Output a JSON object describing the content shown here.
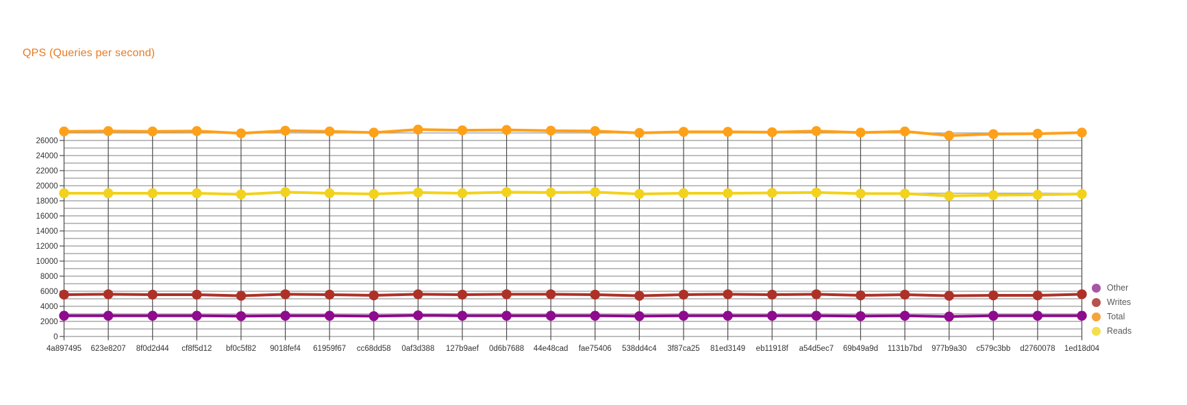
{
  "title": "QPS (Queries per second)",
  "title_color": "#e87a1e",
  "chart_data": {
    "type": "line",
    "title": "QPS (Queries per second)",
    "xlabel": "",
    "ylabel": "",
    "x": [
      "4a897495",
      "623e8207",
      "8f0d2d44",
      "cf8f5d12",
      "bf0c5f82",
      "9018fef4",
      "61959f67",
      "cc68dd58",
      "0af3d388",
      "127b9aef",
      "0d6b7688",
      "44e48cad",
      "fae75406",
      "538dd4c4",
      "3f87ca25",
      "81ed3149",
      "eb11918f",
      "a54d5ec7",
      "69b49a9d",
      "1131b7bd",
      "977b9a30",
      "c579c3bb",
      "d2760078",
      "1ed18d04"
    ],
    "series": [
      {
        "name": "Total",
        "color": "#ffa019",
        "values": [
          27200,
          27250,
          27200,
          27250,
          26950,
          27300,
          27200,
          27050,
          27450,
          27350,
          27400,
          27300,
          27250,
          27000,
          27150,
          27150,
          27100,
          27250,
          27050,
          27200,
          26650,
          26850,
          26900,
          27050
        ]
      },
      {
        "name": "Reads",
        "color": "#f2d21d",
        "values": [
          19000,
          19000,
          19000,
          19000,
          18850,
          19150,
          19000,
          18900,
          19100,
          19000,
          19150,
          19100,
          19150,
          18900,
          19000,
          19000,
          19050,
          19100,
          18950,
          18950,
          18650,
          18750,
          18800,
          18900
        ]
      },
      {
        "name": "Writes",
        "color": "#ad3127",
        "values": [
          5550,
          5600,
          5550,
          5550,
          5400,
          5600,
          5550,
          5450,
          5600,
          5550,
          5600,
          5600,
          5550,
          5400,
          5550,
          5600,
          5550,
          5600,
          5450,
          5550,
          5400,
          5450,
          5450,
          5600
        ]
      },
      {
        "name": "Other",
        "color": "#8e0a8e",
        "values": [
          2750,
          2750,
          2750,
          2750,
          2700,
          2750,
          2750,
          2700,
          2800,
          2750,
          2750,
          2750,
          2750,
          2700,
          2750,
          2750,
          2750,
          2750,
          2700,
          2750,
          2650,
          2750,
          2750,
          2750
        ]
      }
    ],
    "legend": [
      {
        "label": "Other",
        "color": "#a855a8"
      },
      {
        "label": "Writes",
        "color": "#b8524e"
      },
      {
        "label": "Total",
        "color": "#f6a43b"
      },
      {
        "label": "Reads",
        "color": "#f3de4e"
      }
    ],
    "legend_position": "right-bottom",
    "grid": true,
    "ylim": [
      0,
      27500
    ],
    "yticks": [
      0,
      2000,
      4000,
      6000,
      8000,
      10000,
      12000,
      14000,
      16000,
      18000,
      20000,
      22000,
      24000,
      26000
    ],
    "ygrid_step": 1000,
    "ygrid_max": 27000,
    "colors": {
      "h_gridline": "#999999",
      "v_gridline": "#4a4a4a",
      "axis_text": "#333333",
      "legend_text": "#595959"
    }
  }
}
